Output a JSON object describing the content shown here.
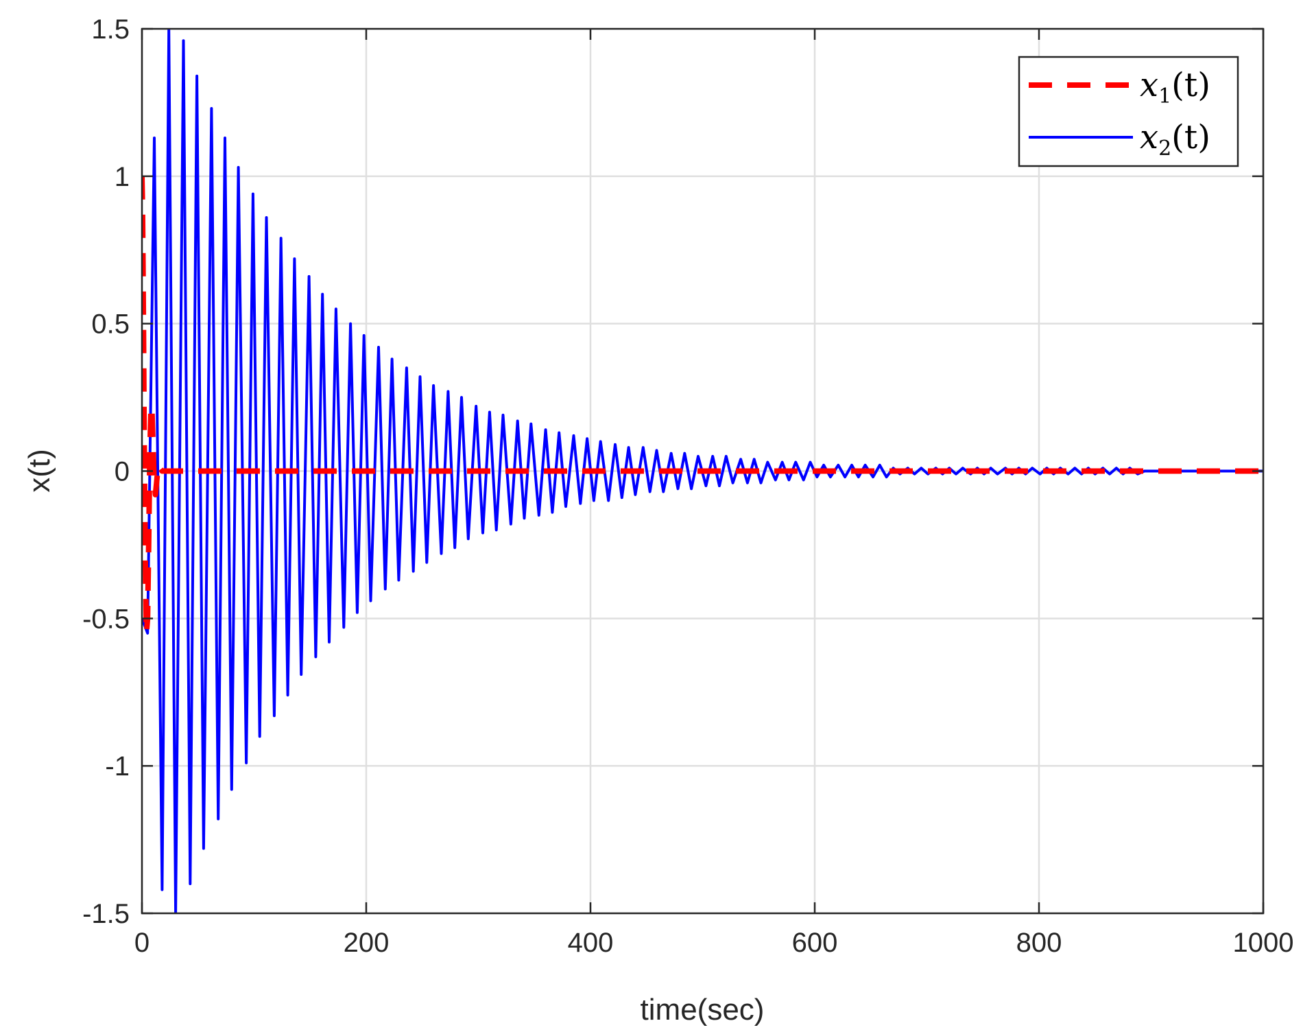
{
  "chart_data": {
    "type": "line",
    "title": "",
    "xlabel": "time(sec)",
    "ylabel": "x(t)",
    "xlim": [
      0,
      1000
    ],
    "ylim": [
      -1.5,
      1.5
    ],
    "xticks": [
      0,
      200,
      400,
      600,
      800,
      1000
    ],
    "yticks": [
      -1.5,
      -1,
      -0.5,
      0,
      0.5,
      1,
      1.5
    ],
    "xtick_labels": [
      "0",
      "200",
      "400",
      "600",
      "800",
      "1000"
    ],
    "ytick_labels": [
      "-1.5",
      "-1",
      "-0.5",
      "0",
      "0.5",
      "1",
      "1.5"
    ],
    "grid": true,
    "legend_position": "top-right",
    "series": [
      {
        "name": "x1(t)",
        "legend_main": "x",
        "legend_sub": "1",
        "legend_tail": "(t)",
        "color": "#ff0000",
        "style": "dashed",
        "x": [
          0,
          0.5,
          1,
          1.5,
          2,
          3,
          4,
          5,
          6,
          7,
          8,
          9,
          10,
          11,
          12,
          13,
          14,
          15,
          16,
          18,
          20,
          25,
          30,
          40,
          50,
          100,
          200,
          400,
          600,
          800,
          1000
        ],
        "y": [
          1.0,
          0.9,
          0.7,
          0.4,
          0.1,
          -0.3,
          -0.55,
          -0.5,
          -0.25,
          0.05,
          0.22,
          0.2,
          0.08,
          -0.04,
          -0.08,
          -0.04,
          0.0,
          0.02,
          0.01,
          0.0,
          0.0,
          0.0,
          0.0,
          0.0,
          0.0,
          0.0,
          0.0,
          0.0,
          0.0,
          0.0,
          0.0
        ]
      },
      {
        "name": "x2(t)",
        "legend_main": "x",
        "legend_sub": "2",
        "legend_tail": "(t)",
        "color": "#0000ff",
        "style": "solid",
        "x": [
          0,
          5,
          11,
          18,
          24,
          30,
          37,
          43,
          49,
          55,
          62,
          68,
          74,
          80,
          86,
          93,
          99,
          105,
          111,
          118,
          124,
          130,
          136,
          142,
          149,
          155,
          161,
          167,
          173,
          180,
          186,
          192,
          198,
          204,
          211,
          217,
          223,
          229,
          236,
          242,
          248,
          254,
          260,
          267,
          273,
          279,
          285,
          291,
          298,
          304,
          310,
          316,
          322,
          329,
          335,
          341,
          347,
          354,
          360,
          366,
          372,
          378,
          385,
          391,
          397,
          403,
          409,
          416,
          422,
          428,
          434,
          440,
          447,
          453,
          459,
          465,
          472,
          478,
          484,
          490,
          496,
          503,
          509,
          515,
          521,
          527,
          534,
          540,
          546,
          552,
          558,
          565,
          571,
          577,
          583,
          590,
          596,
          602,
          608,
          614,
          621,
          627,
          633,
          639,
          645,
          652,
          658,
          664,
          670,
          676,
          683,
          689,
          695,
          701,
          708,
          714,
          720,
          726,
          732,
          739,
          745,
          751,
          757,
          763,
          770,
          776,
          782,
          788,
          794,
          801,
          807,
          813,
          819,
          826,
          832,
          838,
          844,
          850,
          857,
          863,
          869,
          875,
          881,
          888,
          894,
          900,
          906,
          912,
          919,
          925,
          931,
          937,
          944,
          950,
          956,
          962,
          968,
          975,
          981,
          987,
          993,
          1000
        ],
        "y": [
          -0.5,
          -0.55,
          1.13,
          -1.42,
          1.5,
          -1.5,
          1.46,
          -1.4,
          1.34,
          -1.28,
          1.23,
          -1.18,
          1.13,
          -1.08,
          1.03,
          -0.99,
          0.94,
          -0.9,
          0.86,
          -0.83,
          0.79,
          -0.76,
          0.72,
          -0.69,
          0.66,
          -0.63,
          0.6,
          -0.58,
          0.55,
          -0.53,
          0.5,
          -0.48,
          0.46,
          -0.44,
          0.42,
          -0.4,
          0.38,
          -0.37,
          0.35,
          -0.34,
          0.32,
          -0.31,
          0.29,
          -0.28,
          0.27,
          -0.26,
          0.25,
          -0.23,
          0.22,
          -0.21,
          0.2,
          -0.2,
          0.19,
          -0.18,
          0.17,
          -0.16,
          0.16,
          -0.15,
          0.14,
          -0.14,
          0.13,
          -0.12,
          0.12,
          -0.11,
          0.11,
          -0.1,
          0.1,
          -0.1,
          0.09,
          -0.09,
          0.08,
          -0.08,
          0.08,
          -0.07,
          0.07,
          -0.07,
          0.06,
          -0.06,
          0.06,
          -0.06,
          0.05,
          -0.05,
          0.05,
          -0.05,
          0.05,
          -0.04,
          0.04,
          -0.04,
          0.04,
          -0.04,
          0.03,
          -0.03,
          0.03,
          -0.03,
          0.03,
          -0.03,
          0.03,
          -0.02,
          0.02,
          -0.02,
          0.02,
          -0.02,
          0.02,
          -0.02,
          0.02,
          -0.02,
          0.02,
          -0.02,
          0.01,
          -0.01,
          0.01,
          -0.01,
          0.01,
          -0.01,
          0.01,
          -0.01,
          0.01,
          -0.01,
          0.01,
          -0.01,
          0.01,
          -0.01,
          0.01,
          -0.01,
          0.01,
          -0.01,
          0.01,
          -0.01,
          0.01,
          -0.01,
          0.01,
          -0.01,
          0.01,
          -0.01,
          0.01,
          -0.01,
          0.01,
          -0.01,
          0.01,
          -0.01,
          0.01,
          -0.01,
          0.01,
          -0.01,
          0.0,
          0.0,
          0.0,
          0.0,
          0.0,
          0.0,
          0.0,
          0.0,
          0.0,
          0.0,
          0.0,
          0.0,
          0.0,
          0.0,
          0.0,
          0.0,
          0.0,
          0.0
        ]
      }
    ]
  }
}
